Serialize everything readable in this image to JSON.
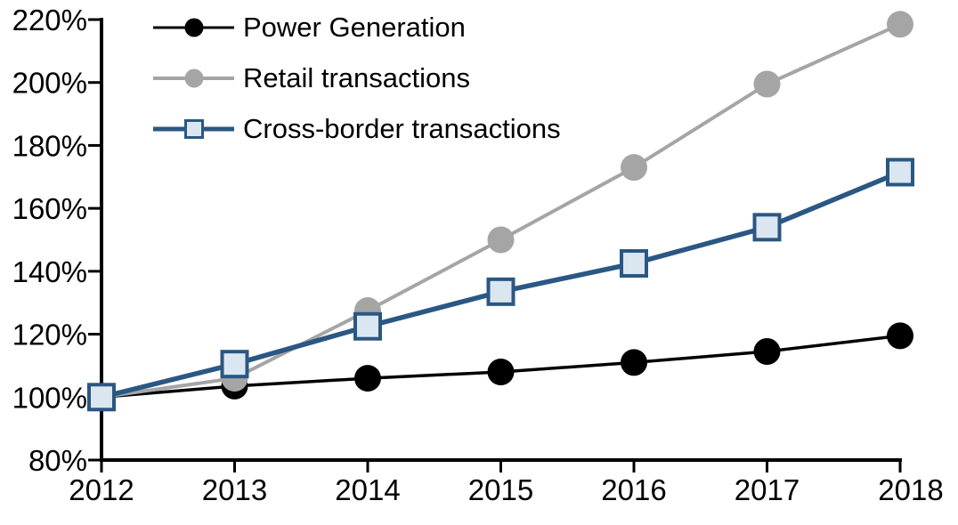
{
  "chart_data": {
    "type": "line",
    "title": "",
    "xlabel": "",
    "ylabel": "",
    "x": [
      2012,
      2013,
      2014,
      2015,
      2016,
      2017,
      2018
    ],
    "x_tick_labels": [
      "2012",
      "2013",
      "2014",
      "2015",
      "2016",
      "2017",
      "2018"
    ],
    "ylim": [
      80,
      220
    ],
    "y_ticks": [
      220,
      200,
      180,
      160,
      140,
      120,
      100,
      80
    ],
    "y_tick_labels": [
      "220%",
      "200%",
      "180%",
      "160%",
      "140%",
      "120%",
      "100%",
      "80%"
    ],
    "grid": false,
    "legend_position": "top-left",
    "axis_color": "#000000",
    "series": [
      {
        "name": "Power Generation",
        "values": [
          100,
          103.5,
          106,
          108,
          111,
          114.5,
          119.5
        ],
        "color": "#000000",
        "marker": "circle",
        "marker_fill": "#000000",
        "line_width": 3.5
      },
      {
        "name": "Retail transactions",
        "values": [
          100,
          106,
          127.5,
          150,
          173,
          199.5,
          218.5
        ],
        "color": "#A5A5A5",
        "marker": "circle",
        "marker_fill": "#A5A5A5",
        "line_width": 4
      },
      {
        "name": "Cross-border transactions",
        "values": [
          100,
          110.5,
          122.5,
          133.5,
          142.5,
          154,
          171.5
        ],
        "color": "#2A5783",
        "marker": "square",
        "marker_fill": "#DCE6F1",
        "line_width": 5.5
      }
    ]
  }
}
